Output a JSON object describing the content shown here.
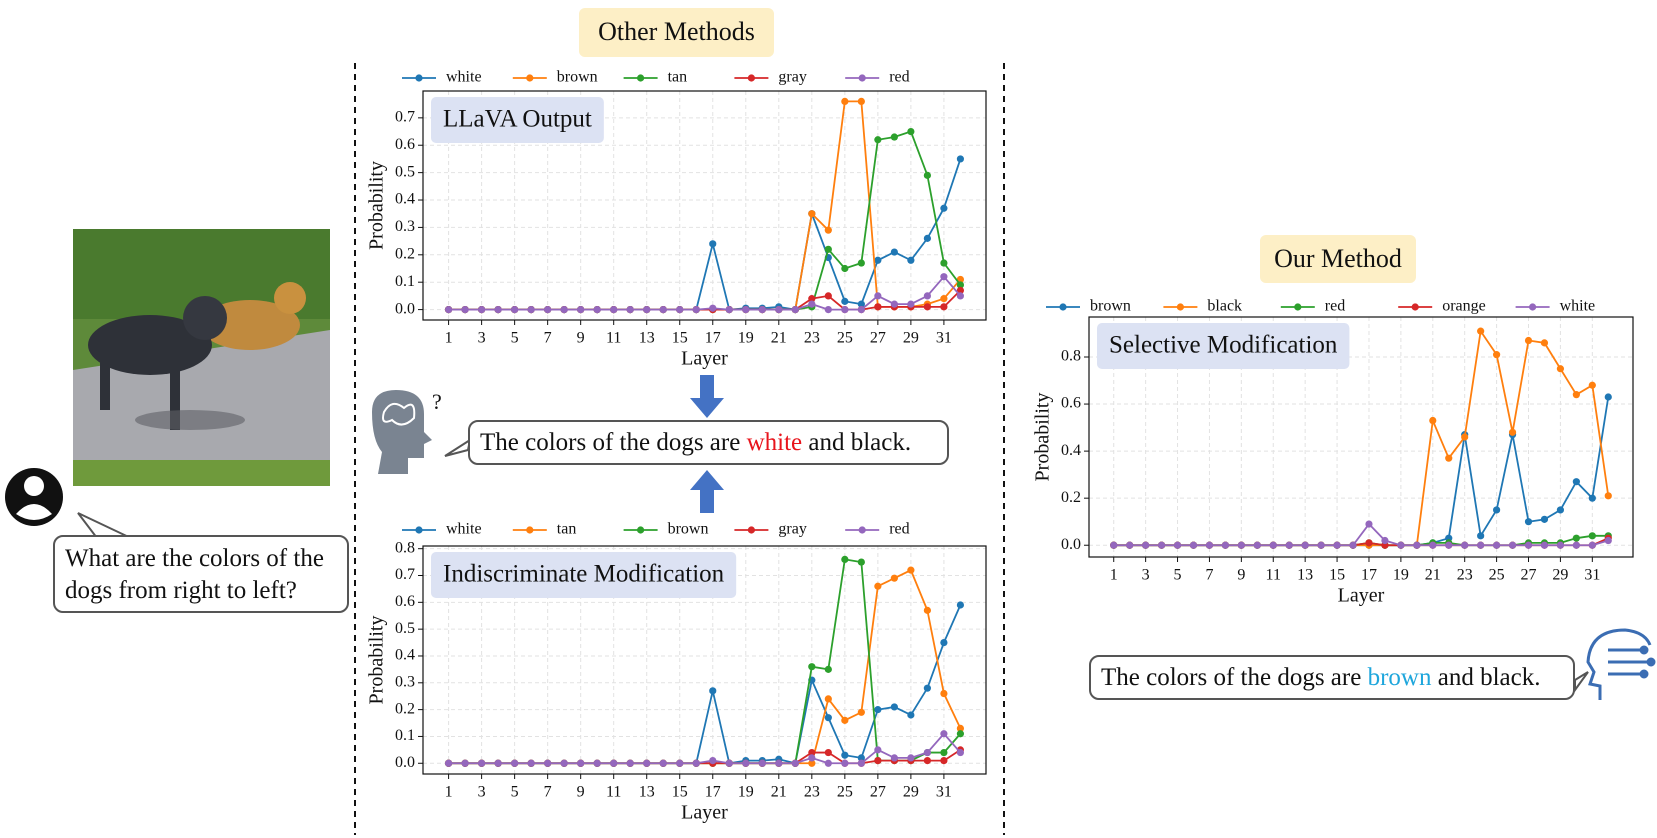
{
  "labels": {
    "other_methods": "Other Methods",
    "our_method": "Our Method"
  },
  "question": "What are the colors of the dogs from right to left?",
  "response_other": {
    "before": "The colors of the dogs are ",
    "highlight": "white",
    "after": " and black."
  },
  "response_ours": {
    "before": "The colors of the dogs are ",
    "highlight": "brown",
    "after": " and black."
  },
  "chart_data": [
    {
      "type": "line",
      "title": "LLaVA Output",
      "xlabel": "Layer",
      "ylabel": "Probability",
      "grid": true,
      "x": [
        1,
        2,
        3,
        4,
        5,
        6,
        7,
        8,
        9,
        10,
        11,
        12,
        13,
        14,
        15,
        16,
        17,
        18,
        19,
        20,
        21,
        22,
        23,
        24,
        25,
        26,
        27,
        28,
        29,
        30,
        31,
        32
      ],
      "xlim": [
        -0.55,
        33.55
      ],
      "xticks": [
        1,
        3,
        5,
        7,
        9,
        11,
        13,
        15,
        17,
        19,
        21,
        23,
        25,
        27,
        29,
        31
      ],
      "ylim": [
        -0.038,
        0.798
      ],
      "yticks": [
        {
          "value": 0,
          "label": "0.0"
        },
        0.1,
        0.2,
        0.3,
        0.4,
        0.5,
        0.6,
        0.7
      ],
      "series": [
        {
          "name": "white",
          "color": "#1f77b4",
          "values": [
            0,
            0,
            0,
            0,
            0,
            0,
            0,
            0,
            0,
            0,
            0,
            0,
            0,
            0,
            0,
            0,
            0.24,
            0,
            0.005,
            0.005,
            0.01,
            0,
            0.35,
            0.19,
            0.03,
            0.02,
            0.18,
            0.21,
            0.18,
            0.26,
            0.37,
            0.55
          ]
        },
        {
          "name": "brown",
          "color": "#ff7f0e",
          "values": [
            0,
            0,
            0,
            0,
            0,
            0,
            0,
            0,
            0,
            0,
            0,
            0,
            0,
            0,
            0,
            0,
            0,
            0,
            0,
            0,
            0,
            0,
            0.35,
            0.29,
            0.76,
            0.76,
            0.01,
            0.01,
            0.01,
            0.02,
            0.04,
            0.11
          ]
        },
        {
          "name": "tan",
          "color": "#2ca02c",
          "values": [
            0,
            0,
            0,
            0,
            0,
            0,
            0,
            0,
            0,
            0,
            0,
            0,
            0,
            0,
            0,
            0,
            0,
            0,
            0,
            0,
            0,
            0,
            0.01,
            0.22,
            0.15,
            0.17,
            0.62,
            0.63,
            0.65,
            0.49,
            0.17,
            0.09
          ]
        },
        {
          "name": "gray",
          "color": "#d62728",
          "values": [
            0,
            0,
            0,
            0,
            0,
            0,
            0,
            0,
            0,
            0,
            0,
            0,
            0,
            0,
            0,
            0,
            0,
            0,
            0,
            0,
            0,
            0,
            0.04,
            0.05,
            0,
            0,
            0.01,
            0.01,
            0.01,
            0.01,
            0.01,
            0.07
          ]
        },
        {
          "name": "red",
          "color": "#9467bd",
          "values": [
            0,
            0,
            0,
            0,
            0,
            0,
            0,
            0,
            0,
            0,
            0,
            0,
            0,
            0,
            0,
            0,
            0.005,
            0,
            0,
            0,
            0,
            0,
            0.02,
            0,
            0,
            0,
            0.05,
            0.02,
            0.02,
            0.05,
            0.12,
            0.05
          ]
        }
      ]
    },
    {
      "type": "line",
      "title": "Indiscriminate Modification",
      "xlabel": "Layer",
      "ylabel": "Probability",
      "grid": true,
      "x": [
        1,
        2,
        3,
        4,
        5,
        6,
        7,
        8,
        9,
        10,
        11,
        12,
        13,
        14,
        15,
        16,
        17,
        18,
        19,
        20,
        21,
        22,
        23,
        24,
        25,
        26,
        27,
        28,
        29,
        30,
        31,
        32
      ],
      "xlim": [
        -0.55,
        33.55
      ],
      "xticks": [
        1,
        3,
        5,
        7,
        9,
        11,
        13,
        15,
        17,
        19,
        21,
        23,
        25,
        27,
        29,
        31
      ],
      "ylim": [
        -0.04,
        0.81
      ],
      "yticks": [
        {
          "value": 0,
          "label": "0.0"
        },
        0.1,
        0.2,
        0.3,
        0.4,
        0.5,
        0.6,
        0.7,
        0.8
      ],
      "series": [
        {
          "name": "white",
          "color": "#1f77b4",
          "values": [
            0,
            0,
            0,
            0,
            0,
            0,
            0,
            0,
            0,
            0,
            0,
            0,
            0,
            0,
            0,
            0,
            0.27,
            0,
            0.01,
            0.01,
            0.015,
            0,
            0.31,
            0.17,
            0.03,
            0.02,
            0.2,
            0.21,
            0.18,
            0.28,
            0.45,
            0.59
          ]
        },
        {
          "name": "tan",
          "color": "#ff7f0e",
          "values": [
            0,
            0,
            0,
            0,
            0,
            0,
            0,
            0,
            0,
            0,
            0,
            0,
            0,
            0,
            0,
            0,
            0,
            0,
            0,
            0,
            0,
            0,
            0,
            0.24,
            0.16,
            0.19,
            0.66,
            0.69,
            0.72,
            0.57,
            0.26,
            0.13
          ]
        },
        {
          "name": "brown",
          "color": "#2ca02c",
          "values": [
            0,
            0,
            0,
            0,
            0,
            0,
            0,
            0,
            0,
            0,
            0,
            0,
            0,
            0,
            0,
            0,
            0,
            0,
            0,
            0,
            0,
            0,
            0.36,
            0.35,
            0.76,
            0.75,
            0.01,
            0.01,
            0.01,
            0.04,
            0.04,
            0.11
          ]
        },
        {
          "name": "gray",
          "color": "#d62728",
          "values": [
            0,
            0,
            0,
            0,
            0,
            0,
            0,
            0,
            0,
            0,
            0,
            0,
            0,
            0,
            0,
            0,
            0,
            0,
            0,
            0,
            0,
            0,
            0.04,
            0.04,
            0,
            0,
            0.01,
            0.01,
            0.01,
            0.01,
            0.01,
            0.05
          ]
        },
        {
          "name": "red",
          "color": "#9467bd",
          "values": [
            0,
            0,
            0,
            0,
            0,
            0,
            0,
            0,
            0,
            0,
            0,
            0,
            0,
            0,
            0,
            0,
            0.01,
            0,
            0,
            0,
            0,
            0,
            0.02,
            0,
            0,
            0,
            0.05,
            0.02,
            0.02,
            0.04,
            0.11,
            0.04
          ]
        }
      ]
    },
    {
      "type": "line",
      "title": "Selective Modification",
      "xlabel": "Layer",
      "ylabel": "Probability",
      "grid": true,
      "x": [
        1,
        2,
        3,
        4,
        5,
        6,
        7,
        8,
        9,
        10,
        11,
        12,
        13,
        14,
        15,
        16,
        17,
        18,
        19,
        20,
        21,
        22,
        23,
        24,
        25,
        26,
        27,
        28,
        29,
        30,
        31,
        32
      ],
      "xlim": [
        -0.55,
        33.55
      ],
      "xticks": [
        1,
        3,
        5,
        7,
        9,
        11,
        13,
        15,
        17,
        19,
        21,
        23,
        25,
        27,
        29,
        31
      ],
      "ylim": [
        -0.05,
        0.97
      ],
      "yticks": [
        {
          "value": 0,
          "label": "0.0"
        },
        0.2,
        0.4,
        0.6,
        0.8
      ],
      "series": [
        {
          "name": "brown",
          "color": "#1f77b4",
          "values": [
            0,
            0,
            0,
            0,
            0,
            0,
            0,
            0,
            0,
            0,
            0,
            0,
            0,
            0,
            0,
            0,
            0,
            0,
            0,
            0,
            0.01,
            0.03,
            0.47,
            0.04,
            0.15,
            0.47,
            0.1,
            0.11,
            0.15,
            0.27,
            0.2,
            0.63
          ]
        },
        {
          "name": "black",
          "color": "#ff7f0e",
          "values": [
            0,
            0,
            0,
            0,
            0,
            0,
            0,
            0,
            0,
            0,
            0,
            0,
            0,
            0,
            0,
            0,
            0,
            0,
            0,
            0,
            0.53,
            0.37,
            0.46,
            0.91,
            0.81,
            0.48,
            0.87,
            0.86,
            0.75,
            0.64,
            0.68,
            0.21
          ]
        },
        {
          "name": "red",
          "color": "#2ca02c",
          "values": [
            0,
            0,
            0,
            0,
            0,
            0,
            0,
            0,
            0,
            0,
            0,
            0,
            0,
            0,
            0,
            0,
            0.01,
            0,
            0,
            0,
            0.01,
            0.01,
            0,
            0,
            0,
            0,
            0.01,
            0.01,
            0.01,
            0.03,
            0.04,
            0.04
          ]
        },
        {
          "name": "orange",
          "color": "#d62728",
          "values": [
            0,
            0,
            0,
            0,
            0,
            0,
            0,
            0,
            0,
            0,
            0,
            0,
            0,
            0,
            0,
            0,
            0.01,
            0,
            0,
            0,
            0,
            0,
            0,
            0,
            0,
            0,
            0,
            0,
            0,
            0,
            0,
            0.03
          ]
        },
        {
          "name": "white",
          "color": "#9467bd",
          "values": [
            0,
            0,
            0,
            0,
            0,
            0,
            0,
            0,
            0,
            0,
            0,
            0,
            0,
            0,
            0,
            0,
            0.09,
            0.02,
            0,
            0,
            0,
            0,
            0,
            0,
            0,
            0,
            0,
            0,
            0,
            0,
            0,
            0.02
          ]
        }
      ]
    }
  ]
}
